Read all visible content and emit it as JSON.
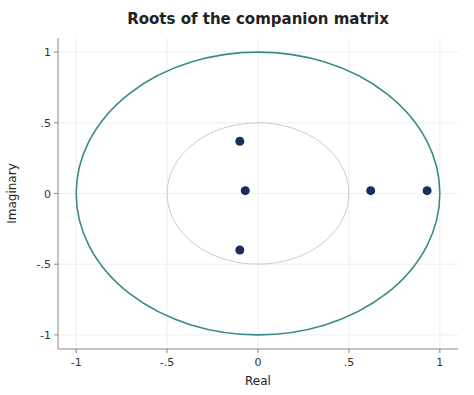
{
  "chart_data": {
    "type": "scatter",
    "title": "Roots of the companion matrix",
    "xlabel": "Real",
    "ylabel": "Imaginary",
    "x": [
      -0.07,
      -0.1,
      -0.1,
      0.62,
      0.93
    ],
    "values": [
      0.02,
      0.37,
      -0.4,
      0.02,
      0.02
    ],
    "color": "#1a2e5e",
    "xlim": [
      -1.1,
      1.1
    ],
    "ylim": [
      -1.1,
      1.1
    ],
    "xticks": [
      -1,
      {
        "value": -0.5,
        "label": "-.5"
      },
      0,
      {
        "value": 0.5,
        "label": ".5"
      },
      1
    ],
    "yticks": [
      -1,
      {
        "value": -0.5,
        "label": "-.5"
      },
      0,
      {
        "value": 0.5,
        "label": ".5"
      },
      1
    ],
    "grid": true
  }
}
